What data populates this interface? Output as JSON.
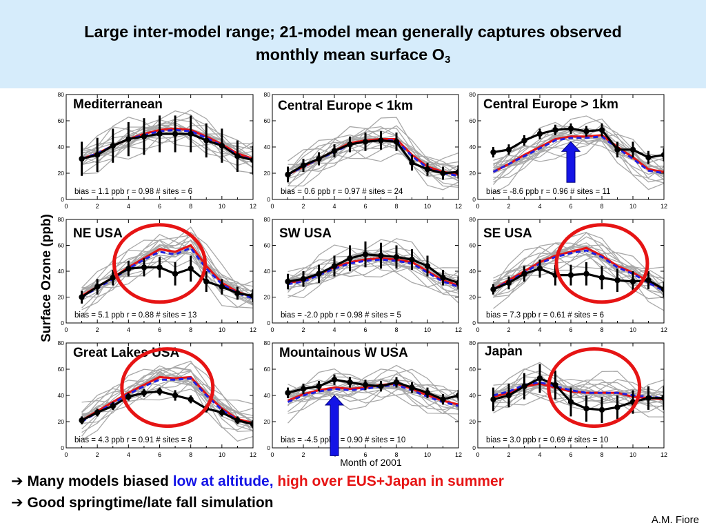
{
  "title": {
    "line1": "Large inter-model range; 21-model mean generally captures observed",
    "line2": "monthly mean surface O",
    "line2_sub": "3"
  },
  "ylabel": "Surface Ozone (ppb)",
  "xlabel": "Month of 2001",
  "bullets": [
    {
      "arrow": "➔",
      "parts": [
        {
          "text": "Many models biased ",
          "color": "black"
        },
        {
          "text": "low at altitude, ",
          "color": "blue"
        },
        {
          "text": "high over EUS+Japan in summer",
          "color": "red"
        }
      ]
    },
    {
      "arrow": "➔",
      "parts": [
        {
          "text": "Good springtime/late fall simulation",
          "color": "black"
        }
      ]
    }
  ],
  "credit": "A.M. Fiore",
  "colors": {
    "observed": "#000000",
    "model_mean": "#e61414",
    "models": "#a8a8a8",
    "model_median": "#2020e0",
    "circle": "#e61414",
    "arrow": "#1414e6"
  },
  "chart_data": [
    {
      "type": "line",
      "region": "Mediterranean",
      "xlim": [
        0,
        12
      ],
      "ylim": [
        0,
        80
      ],
      "xticks": [
        "0",
        "2",
        "4",
        "6",
        "8",
        "10",
        "12"
      ],
      "yticks": [
        "0",
        "20",
        "40",
        "60",
        "80"
      ],
      "stats": "bias = 1.1 ppb   r = 0.98  # sites = 6",
      "months": [
        1,
        2,
        3,
        4,
        5,
        6,
        7,
        8,
        9,
        10,
        11,
        12
      ],
      "observed": [
        31,
        34,
        41,
        46,
        48,
        50,
        50,
        50,
        45,
        41,
        33,
        30
      ],
      "observed_err": [
        13,
        13,
        13,
        13,
        14,
        14,
        14,
        14,
        13,
        13,
        12,
        11
      ],
      "model_mean": [
        31,
        35,
        41,
        46,
        50,
        53,
        54,
        53,
        48,
        42,
        35,
        31
      ],
      "model_median": [
        31,
        35,
        41,
        46,
        49,
        52,
        53,
        52,
        47,
        41,
        34,
        30
      ],
      "annotation": null
    },
    {
      "type": "line",
      "region": "Central Europe < 1km",
      "xlim": [
        0,
        12
      ],
      "ylim": [
        0,
        80
      ],
      "xticks": [
        "0",
        "2",
        "4",
        "6",
        "8",
        "10",
        "12"
      ],
      "yticks": [
        "0",
        "20",
        "40",
        "60",
        "80"
      ],
      "stats": "bias = 0.6 ppb   r = 0.97  # sites = 24",
      "months": [
        1,
        2,
        3,
        4,
        5,
        6,
        7,
        8,
        9,
        10,
        11,
        12
      ],
      "observed": [
        19,
        26,
        31,
        37,
        42,
        44,
        45,
        44,
        28,
        23,
        20,
        21
      ],
      "observed_err": [
        6,
        5,
        5,
        5,
        6,
        7,
        7,
        7,
        6,
        5,
        5,
        5
      ],
      "model_mean": [
        19,
        25,
        31,
        37,
        43,
        45,
        46,
        46,
        34,
        25,
        21,
        19
      ],
      "model_median": [
        19,
        25,
        31,
        36,
        42,
        44,
        45,
        45,
        33,
        24,
        20,
        18
      ],
      "annotation": null
    },
    {
      "type": "line",
      "region": "Central Europe > 1km",
      "xlim": [
        0,
        12
      ],
      "ylim": [
        0,
        80
      ],
      "xticks": [
        "0",
        "2",
        "4",
        "6",
        "8",
        "10",
        "12"
      ],
      "yticks": [
        "0",
        "20",
        "40",
        "60",
        "80"
      ],
      "stats": "bias = -8.6 ppb   r = 0.96  # sites = 11",
      "months": [
        1,
        2,
        3,
        4,
        5,
        6,
        7,
        8,
        9,
        10,
        11,
        12
      ],
      "observed": [
        36,
        38,
        45,
        50,
        53,
        54,
        52,
        53,
        38,
        38,
        32,
        34
      ],
      "observed_err": [
        4,
        4,
        4,
        4,
        4,
        4,
        4,
        5,
        6,
        6,
        5,
        5
      ],
      "model_mean": [
        21,
        27,
        34,
        40,
        46,
        48,
        48,
        49,
        40,
        32,
        23,
        21
      ],
      "model_median": [
        21,
        27,
        33,
        39,
        45,
        47,
        47,
        48,
        39,
        31,
        22,
        20
      ],
      "annotation": {
        "kind": "arrow",
        "x": 6
      }
    },
    {
      "type": "line",
      "region": "NE USA",
      "xlim": [
        0,
        12
      ],
      "ylim": [
        0,
        80
      ],
      "xticks": [
        "0",
        "2",
        "4",
        "6",
        "8",
        "10",
        "12"
      ],
      "yticks": [
        "0",
        "20",
        "40",
        "60",
        "80"
      ],
      "stats": "bias = 5.1 ppb   r = 0.88  # sites = 13",
      "months": [
        1,
        2,
        3,
        4,
        5,
        6,
        7,
        8,
        9,
        10,
        11,
        12
      ],
      "observed": [
        20,
        28,
        35,
        42,
        43,
        43,
        38,
        42,
        32,
        28,
        23,
        21
      ],
      "observed_err": [
        5,
        6,
        6,
        6,
        7,
        8,
        9,
        10,
        8,
        6,
        5,
        5
      ],
      "model_mean": [
        21,
        28,
        35,
        43,
        50,
        57,
        55,
        60,
        44,
        31,
        24,
        20
      ],
      "model_median": [
        20,
        27,
        34,
        42,
        49,
        55,
        53,
        58,
        42,
        30,
        23,
        19
      ],
      "annotation": {
        "kind": "circle",
        "x": 6
      }
    },
    {
      "type": "line",
      "region": "SW USA",
      "xlim": [
        0,
        12
      ],
      "ylim": [
        0,
        80
      ],
      "xticks": [
        "0",
        "2",
        "4",
        "6",
        "8",
        "10",
        "12"
      ],
      "yticks": [
        "0",
        "20",
        "40",
        "60",
        "80"
      ],
      "stats": "bias = -2.0 ppb   r = 0.98  # sites = 5",
      "months": [
        1,
        2,
        3,
        4,
        5,
        6,
        7,
        8,
        9,
        10,
        11,
        12
      ],
      "observed": [
        32,
        34,
        38,
        44,
        50,
        53,
        52,
        51,
        49,
        44,
        35,
        31
      ],
      "observed_err": [
        6,
        6,
        7,
        8,
        10,
        10,
        10,
        9,
        8,
        8,
        6,
        5
      ],
      "model_mean": [
        31,
        33,
        38,
        43,
        47,
        49,
        50,
        49,
        47,
        40,
        33,
        29
      ],
      "model_median": [
        30,
        32,
        37,
        42,
        46,
        48,
        49,
        48,
        46,
        39,
        32,
        28
      ],
      "annotation": null
    },
    {
      "type": "line",
      "region": "SE USA",
      "xlim": [
        0,
        12
      ],
      "ylim": [
        0,
        80
      ],
      "xticks": [
        "0",
        "2",
        "4",
        "6",
        "8",
        "10",
        "12"
      ],
      "yticks": [
        "0",
        "20",
        "40",
        "60",
        "80"
      ],
      "stats": "bias = 7.3 ppb   r = 0.61  # sites = 6",
      "months": [
        1,
        2,
        3,
        4,
        5,
        6,
        7,
        8,
        9,
        10,
        11,
        12
      ],
      "observed": [
        26,
        31,
        38,
        42,
        37,
        37,
        38,
        35,
        33,
        32,
        33,
        26
      ],
      "observed_err": [
        4,
        5,
        6,
        7,
        8,
        8,
        9,
        9,
        9,
        8,
        7,
        6
      ],
      "model_mean": [
        26,
        33,
        40,
        47,
        52,
        55,
        58,
        52,
        44,
        39,
        32,
        26
      ],
      "model_median": [
        26,
        32,
        39,
        46,
        51,
        54,
        56,
        51,
        43,
        38,
        31,
        25
      ],
      "annotation": {
        "kind": "circle",
        "x": 8
      }
    },
    {
      "type": "line",
      "region": "Great Lakes USA",
      "xlim": [
        0,
        12
      ],
      "ylim": [
        0,
        80
      ],
      "xticks": [
        "0",
        "2",
        "4",
        "6",
        "8",
        "10",
        "12"
      ],
      "yticks": [
        "0",
        "20",
        "40",
        "60",
        "80"
      ],
      "stats": "bias = 4.3 ppb   r = 0.91  # sites = 8",
      "months": [
        1,
        2,
        3,
        4,
        5,
        6,
        7,
        8,
        9,
        10,
        11,
        12
      ],
      "observed": [
        21,
        27,
        32,
        39,
        42,
        43,
        40,
        37,
        30,
        27,
        21,
        18
      ],
      "observed_err": [
        3,
        3,
        3,
        3,
        3,
        3,
        4,
        3,
        3,
        3,
        3,
        3
      ],
      "model_mean": [
        21,
        28,
        35,
        42,
        48,
        54,
        53,
        54,
        41,
        30,
        22,
        19
      ],
      "model_median": [
        20,
        27,
        34,
        41,
        47,
        52,
        52,
        53,
        40,
        29,
        21,
        18
      ],
      "annotation": {
        "kind": "circle",
        "x": 6.5
      }
    },
    {
      "type": "line",
      "region": "Mountainous W USA",
      "xlim": [
        0,
        12
      ],
      "ylim": [
        0,
        80
      ],
      "xticks": [
        "0",
        "2",
        "4",
        "6",
        "8",
        "10",
        "12"
      ],
      "yticks": [
        "0",
        "20",
        "40",
        "60",
        "80"
      ],
      "stats": "bias = -4.5 ppb   r = 0.90  # sites = 10",
      "months": [
        1,
        2,
        3,
        4,
        5,
        6,
        7,
        8,
        9,
        10,
        11,
        12
      ],
      "observed": [
        42,
        45,
        47,
        52,
        50,
        48,
        47,
        50,
        46,
        42,
        37,
        40
      ],
      "observed_err": [
        4,
        4,
        4,
        4,
        4,
        4,
        4,
        4,
        4,
        4,
        4,
        4
      ],
      "model_mean": [
        36,
        41,
        44,
        46,
        45,
        46,
        48,
        49,
        45,
        40,
        36,
        33
      ],
      "model_median": [
        35,
        40,
        43,
        45,
        44,
        45,
        47,
        48,
        44,
        39,
        35,
        32
      ],
      "annotation": {
        "kind": "arrow",
        "x": 4
      }
    },
    {
      "type": "line",
      "region": "Japan",
      "xlim": [
        0,
        12
      ],
      "ylim": [
        0,
        80
      ],
      "xticks": [
        "0",
        "2",
        "4",
        "6",
        "8",
        "10",
        "12"
      ],
      "yticks": [
        "0",
        "20",
        "40",
        "60",
        "80"
      ],
      "stats": "bias = 3.0 ppb   r = 0.69  # sites = 10",
      "months": [
        1,
        2,
        3,
        4,
        5,
        6,
        7,
        8,
        9,
        10,
        11,
        12
      ],
      "observed": [
        37,
        40,
        47,
        53,
        48,
        35,
        30,
        29,
        31,
        35,
        38,
        38
      ],
      "observed_err": [
        9,
        9,
        10,
        11,
        11,
        11,
        10,
        10,
        9,
        9,
        9,
        9
      ],
      "model_mean": [
        39,
        42,
        47,
        49,
        46,
        43,
        42,
        42,
        42,
        39,
        38,
        37
      ],
      "model_median": [
        40,
        43,
        48,
        50,
        47,
        44,
        42,
        42,
        42,
        40,
        39,
        38
      ],
      "annotation": {
        "kind": "circle",
        "x": 7.5
      }
    }
  ]
}
